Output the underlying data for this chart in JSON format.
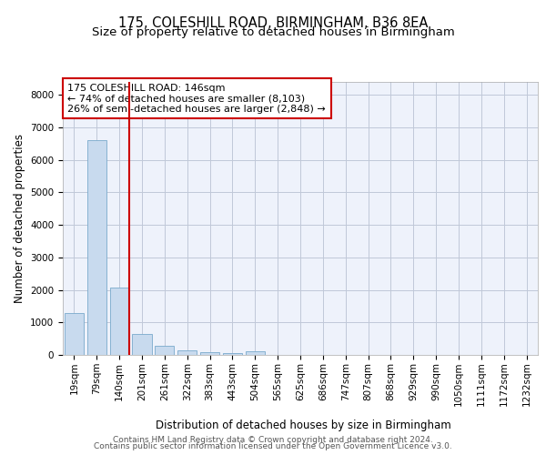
{
  "title1": "175, COLESHILL ROAD, BIRMINGHAM, B36 8EA",
  "title2": "Size of property relative to detached houses in Birmingham",
  "xlabel": "Distribution of detached houses by size in Birmingham",
  "ylabel": "Number of detached properties",
  "annotation_title": "175 COLESHILL ROAD: 146sqm",
  "annotation_line2": "← 74% of detached houses are smaller (8,103)",
  "annotation_line3": "26% of semi-detached houses are larger (2,848) →",
  "footer1": "Contains HM Land Registry data © Crown copyright and database right 2024.",
  "footer2": "Contains public sector information licensed under the Open Government Licence v3.0.",
  "bar_labels": [
    "19sqm",
    "79sqm",
    "140sqm",
    "201sqm",
    "261sqm",
    "322sqm",
    "383sqm",
    "443sqm",
    "504sqm",
    "565sqm",
    "625sqm",
    "686sqm",
    "747sqm",
    "807sqm",
    "868sqm",
    "929sqm",
    "990sqm",
    "1050sqm",
    "1111sqm",
    "1172sqm",
    "1232sqm"
  ],
  "bar_values": [
    1300,
    6600,
    2080,
    650,
    290,
    150,
    90,
    60,
    110,
    0,
    0,
    0,
    0,
    0,
    0,
    0,
    0,
    0,
    0,
    0,
    0
  ],
  "bar_color": "#c8daee",
  "bar_edge_color": "#7aaacc",
  "highlight_line_index": 2,
  "highlight_color": "#cc0000",
  "ylim": [
    0,
    8400
  ],
  "yticks": [
    0,
    1000,
    2000,
    3000,
    4000,
    5000,
    6000,
    7000,
    8000
  ],
  "background_color": "#eef2fb",
  "grid_color": "#c0c8d8",
  "title_fontsize": 10.5,
  "subtitle_fontsize": 9.5,
  "axis_label_fontsize": 8.5,
  "tick_fontsize": 7.5,
  "annotation_fontsize": 8,
  "footer_fontsize": 6.5
}
